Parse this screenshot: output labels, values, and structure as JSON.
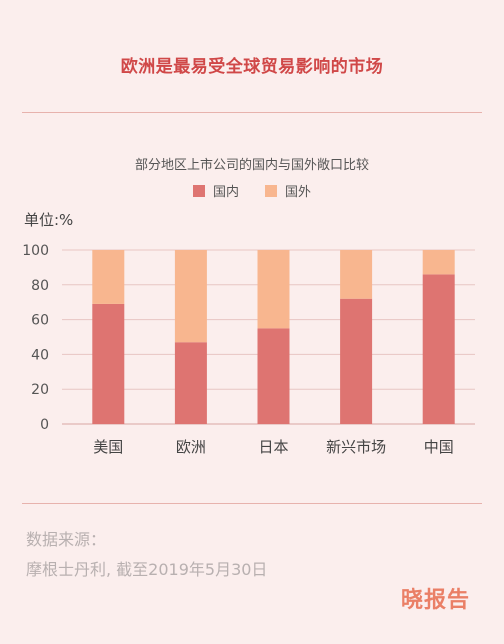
{
  "header": {
    "title": "欧洲是最易受全球贸易影响的市场"
  },
  "colors": {
    "domestic": "#de7471",
    "foreign": "#f8b68f",
    "title": "#d04848",
    "grid": "#e8c5c3"
  },
  "chart_data": {
    "type": "bar",
    "stacked": true,
    "title": "部分地区上市公司的国内与国外敞口比较",
    "ylabel": "单位:%",
    "xlabel": "",
    "ylim": [
      0,
      100
    ],
    "yticks": [
      "0",
      "20",
      "40",
      "60",
      "80",
      "100"
    ],
    "grid": true,
    "legend_position": "top-center",
    "categories": [
      "美国",
      "欧洲",
      "日本",
      "新兴市场",
      "中国"
    ],
    "series": [
      {
        "name": "国内",
        "values": [
          69,
          47,
          55,
          72,
          86
        ]
      },
      {
        "name": "国外",
        "values": [
          31,
          53,
          45,
          28,
          14
        ]
      }
    ]
  },
  "footer": {
    "source_label": "数据来源：",
    "source_text": "摩根士丹利, 截至2019年5月30日",
    "logo": "晓报告"
  }
}
